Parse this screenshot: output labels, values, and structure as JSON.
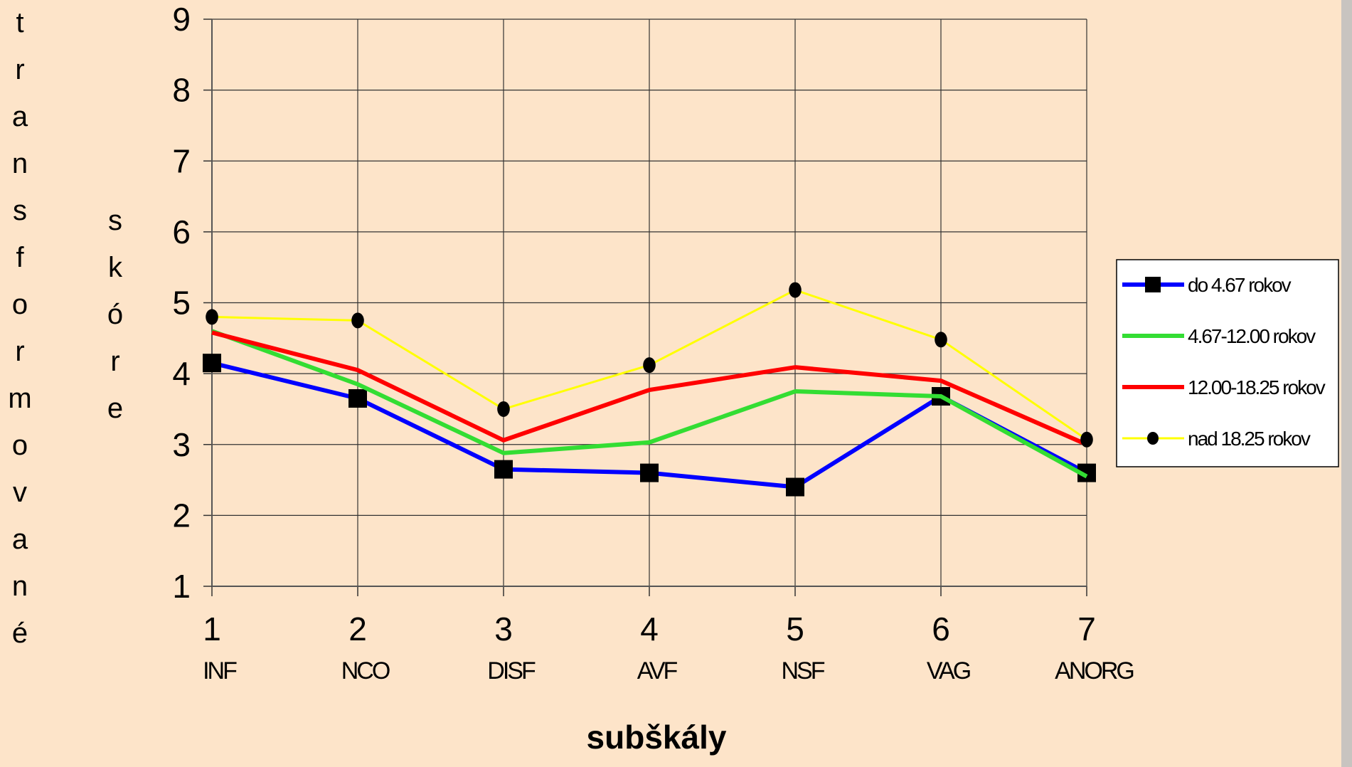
{
  "chart_data": {
    "type": "line",
    "ylabel": [
      "transformované",
      "skóre"
    ],
    "xlabel": "subškály",
    "x": [
      1,
      2,
      3,
      4,
      5,
      6,
      7
    ],
    "x_sublabels": [
      "INF",
      "NCO",
      "DISF",
      "AVF",
      "NSF",
      "VAG",
      "ANORG"
    ],
    "xlim": [
      1,
      7
    ],
    "xticks": [
      1,
      2,
      3,
      4,
      5,
      6,
      7
    ],
    "ylim": [
      1,
      9
    ],
    "yticks": [
      1,
      2,
      3,
      4,
      5,
      6,
      7,
      8,
      9
    ],
    "grid": true,
    "legend": "right",
    "series": [
      {
        "name": "do 4.67 rokov",
        "color": "#0000ff",
        "marker": "square",
        "values": [
          4.15,
          3.65,
          2.65,
          2.6,
          2.4,
          3.68,
          2.6
        ]
      },
      {
        "name": "4.67-12.00 rokov",
        "color": "#33dd33",
        "marker": null,
        "values": [
          4.6,
          3.85,
          2.88,
          3.03,
          3.75,
          3.68,
          2.55
        ]
      },
      {
        "name": "12.00-18.25 rokov",
        "color": "#ff0000",
        "marker": null,
        "values": [
          4.58,
          4.05,
          3.06,
          3.77,
          4.09,
          3.9,
          3.0
        ]
      },
      {
        "name": "nad 18.25 rokov",
        "color": "#ffff00",
        "marker": "circle",
        "values": [
          4.8,
          4.75,
          3.5,
          4.12,
          5.18,
          4.48,
          3.07
        ]
      }
    ]
  }
}
